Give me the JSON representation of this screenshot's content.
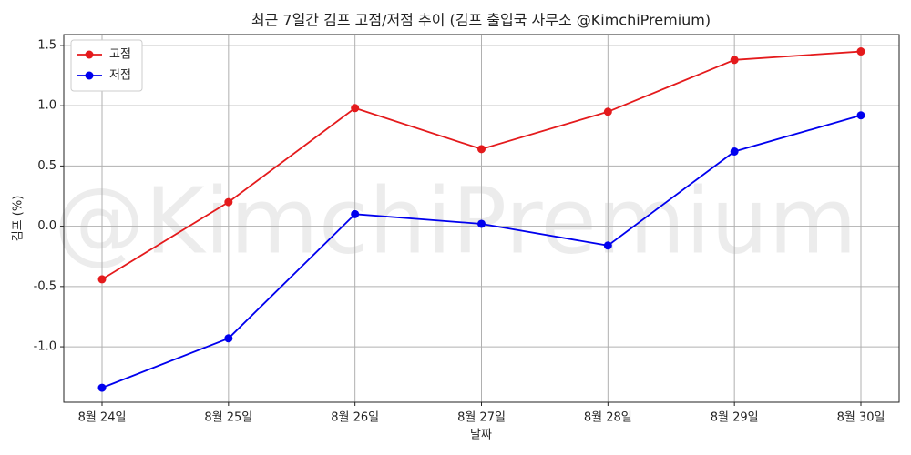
{
  "chart_data": {
    "type": "line",
    "title": "최근 7일간 김프 고점/저점 추이 (김프 출입국 사무소 @KimchiPremium)",
    "watermark": "@KimchiPremium",
    "x_label": "날짜",
    "y_label": "김프 (%)",
    "categories": [
      "8월 24일",
      "8월 25일",
      "8월 26일",
      "8월 27일",
      "8월 28일",
      "8월 29일",
      "8월 30일"
    ],
    "series": [
      {
        "name": "고점",
        "color": "#e41a1c",
        "values": [
          -0.44,
          0.2,
          0.98,
          0.64,
          0.95,
          1.38,
          1.45
        ]
      },
      {
        "name": "저점",
        "color": "#0000ee",
        "values": [
          -1.34,
          -0.93,
          0.1,
          0.02,
          -0.16,
          0.62,
          0.92
        ]
      }
    ],
    "ylim": [
      -1.46,
      1.59
    ],
    "yticks": [
      {
        "value": -1,
        "label": "-1.0"
      },
      -0.5,
      {
        "value": 0,
        "label": "0.0"
      },
      0.5,
      {
        "value": 1,
        "label": "1.0"
      },
      1.5
    ],
    "grid": true,
    "legend": "upper left"
  }
}
